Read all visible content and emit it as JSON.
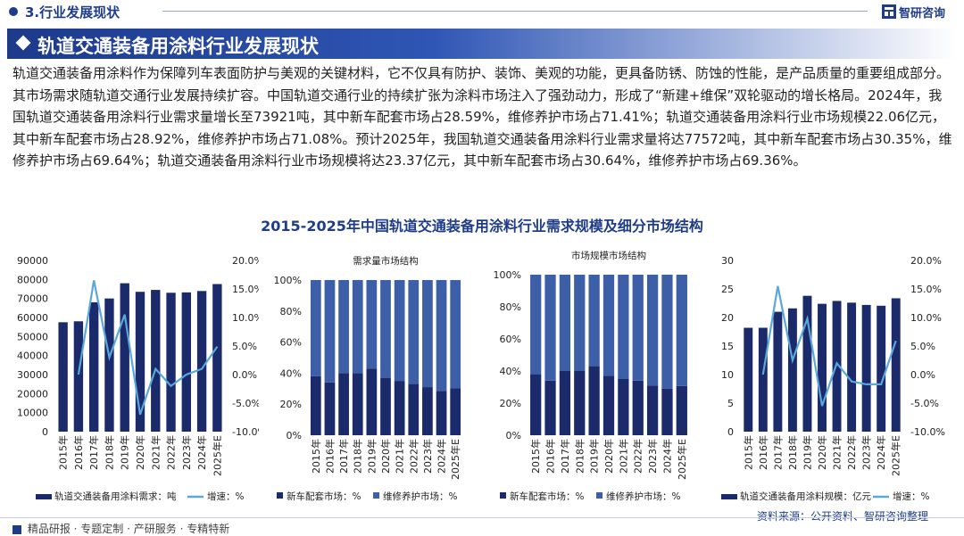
{
  "header": {
    "section": "3.行业发展现状",
    "brand": "智研咨询",
    "banner_title": "轨道交通装备用涂料行业发展现状"
  },
  "paragraph": "轨道交通装备用涂料作为保障列车表面防护与美观的关键材料，它不仅具有防护、装饰、美观的功能，更具备防锈、防蚀的性能，是产品质量的重要组成部分。其市场需求随轨道交通行业发展持续扩容。中国轨道交通行业的持续扩张为涂料市场注入了强劲动力，形成了“新建+维保”双轮驱动的增长格局。2024年，我国轨道交通装备用涂料行业需求量增长至73921吨，其中新车配套市场占28.59%，维修养护市场占71.41%；轨道交通装备用涂料行业市场规模22.06亿元，其中新车配套市场占28.92%，维修养护市场占71.08%。预计2025年，我国轨道交通装备用涂料行业需求量将达77572吨，其中新车配套市场占30.35%，维修养护市场占69.64%；轨道交通装备用涂料行业市场规模将达23.37亿元，其中新车配套市场占30.64%，维修养护市场占69.36%。",
  "figure_title": "2015-2025年中国轨道交通装备用涂料行业需求规模及细分市场结构",
  "colors": {
    "dark": "#1b2a6b",
    "mid": "#3d5fa8",
    "line": "#5aa7dc"
  },
  "chart_data": [
    {
      "type": "bar",
      "title": "",
      "categories": [
        "2015年",
        "2016年",
        "2017年",
        "2018年",
        "2019年",
        "2020年",
        "2021年",
        "2022年",
        "2023年",
        "2024年",
        "2025年E"
      ],
      "series": [
        {
          "name": "轨道交通装备用涂料需求：吨",
          "values": [
            57500,
            58000,
            68000,
            70000,
            78000,
            73500,
            74500,
            73000,
            73200,
            73921,
            77572
          ]
        },
        {
          "name": "增速：%",
          "axis": "right",
          "type": "line",
          "values": [
            null,
            0.0,
            16.5,
            3.0,
            10.5,
            -7.0,
            1.0,
            -2.0,
            0.0,
            1.0,
            4.9
          ]
        }
      ],
      "y_ticks": [
        "0",
        "10000",
        "20000",
        "30000",
        "40000",
        "50000",
        "60000",
        "70000",
        "80000",
        "90000"
      ],
      "y2_ticks": [
        "-10.0%",
        "-5.0%",
        "0.0%",
        "5.0%",
        "10.0%",
        "15.0%",
        "20.0%"
      ],
      "ylim": [
        0,
        90000
      ],
      "y2lim": [
        -10,
        20
      ],
      "legend": "bottom"
    },
    {
      "type": "bar",
      "stacked": true,
      "title": "需求量市场结构",
      "categories": [
        "2015年",
        "2016年",
        "2017年",
        "2018年",
        "2019年",
        "2020年",
        "2021年",
        "2022年",
        "2023年",
        "2024年",
        "2025年E"
      ],
      "series": [
        {
          "name": "新车配套市场：%",
          "values": [
            38,
            34,
            40,
            40,
            43,
            37,
            35,
            33,
            31,
            28.59,
            30.35
          ]
        },
        {
          "name": "维修养护市场：%",
          "values": [
            62,
            66,
            60,
            60,
            57,
            63,
            65,
            67,
            69,
            71.41,
            69.64
          ]
        }
      ],
      "y_ticks": [
        "0%",
        "20%",
        "40%",
        "60%",
        "80%",
        "100%"
      ],
      "ylim": [
        0,
        100
      ],
      "legend": "bottom"
    },
    {
      "type": "bar",
      "stacked": true,
      "title": "市场规模市场结构",
      "categories": [
        "2015年",
        "2016年",
        "2017年",
        "2018年",
        "2019年",
        "2020年",
        "2021年",
        "2022年",
        "2023年",
        "2024年",
        "2025年E"
      ],
      "series": [
        {
          "name": "新车配套市场：%",
          "values": [
            38,
            34,
            40,
            40,
            43,
            37,
            35,
            34,
            31,
            28.92,
            30.64
          ]
        },
        {
          "name": "维修养护市场：%",
          "values": [
            62,
            66,
            60,
            60,
            57,
            63,
            65,
            66,
            69,
            71.08,
            69.36
          ]
        }
      ],
      "y_ticks": [
        "0%",
        "20%",
        "40%",
        "60%",
        "80%",
        "100%"
      ],
      "ylim": [
        0,
        100
      ],
      "legend": "bottom"
    },
    {
      "type": "bar",
      "title": "",
      "categories": [
        "2015年",
        "2016年",
        "2017年",
        "2018年",
        "2019年",
        "2020年",
        "2021年",
        "2022年",
        "2023年",
        "2024年",
        "2025年E"
      ],
      "series": [
        {
          "name": "轨道交通装备用涂料规模：亿元",
          "values": [
            18.2,
            18.2,
            21.0,
            21.6,
            23.8,
            22.4,
            22.9,
            22.6,
            22.2,
            22.06,
            23.37
          ]
        },
        {
          "name": "增速：%",
          "axis": "right",
          "type": "line",
          "values": [
            null,
            0.0,
            15.5,
            2.5,
            9.8,
            -5.5,
            2.0,
            -1.2,
            -1.7,
            -1.7,
            5.9
          ]
        }
      ],
      "y_ticks": [
        "0",
        "5",
        "10",
        "15",
        "20",
        "25",
        "30"
      ],
      "y2_ticks": [
        "-10.0%",
        "-5.0%",
        "0.0%",
        "5.0%",
        "10.0%",
        "15.0%",
        "20.0%"
      ],
      "ylim": [
        0,
        30
      ],
      "y2lim": [
        -10,
        20
      ],
      "legend": "bottom"
    }
  ],
  "source": "资料来源：公开资料、智研咨询整理",
  "footer": [
    "精品研报",
    "专题定制",
    "产研服务",
    "专精特新"
  ]
}
